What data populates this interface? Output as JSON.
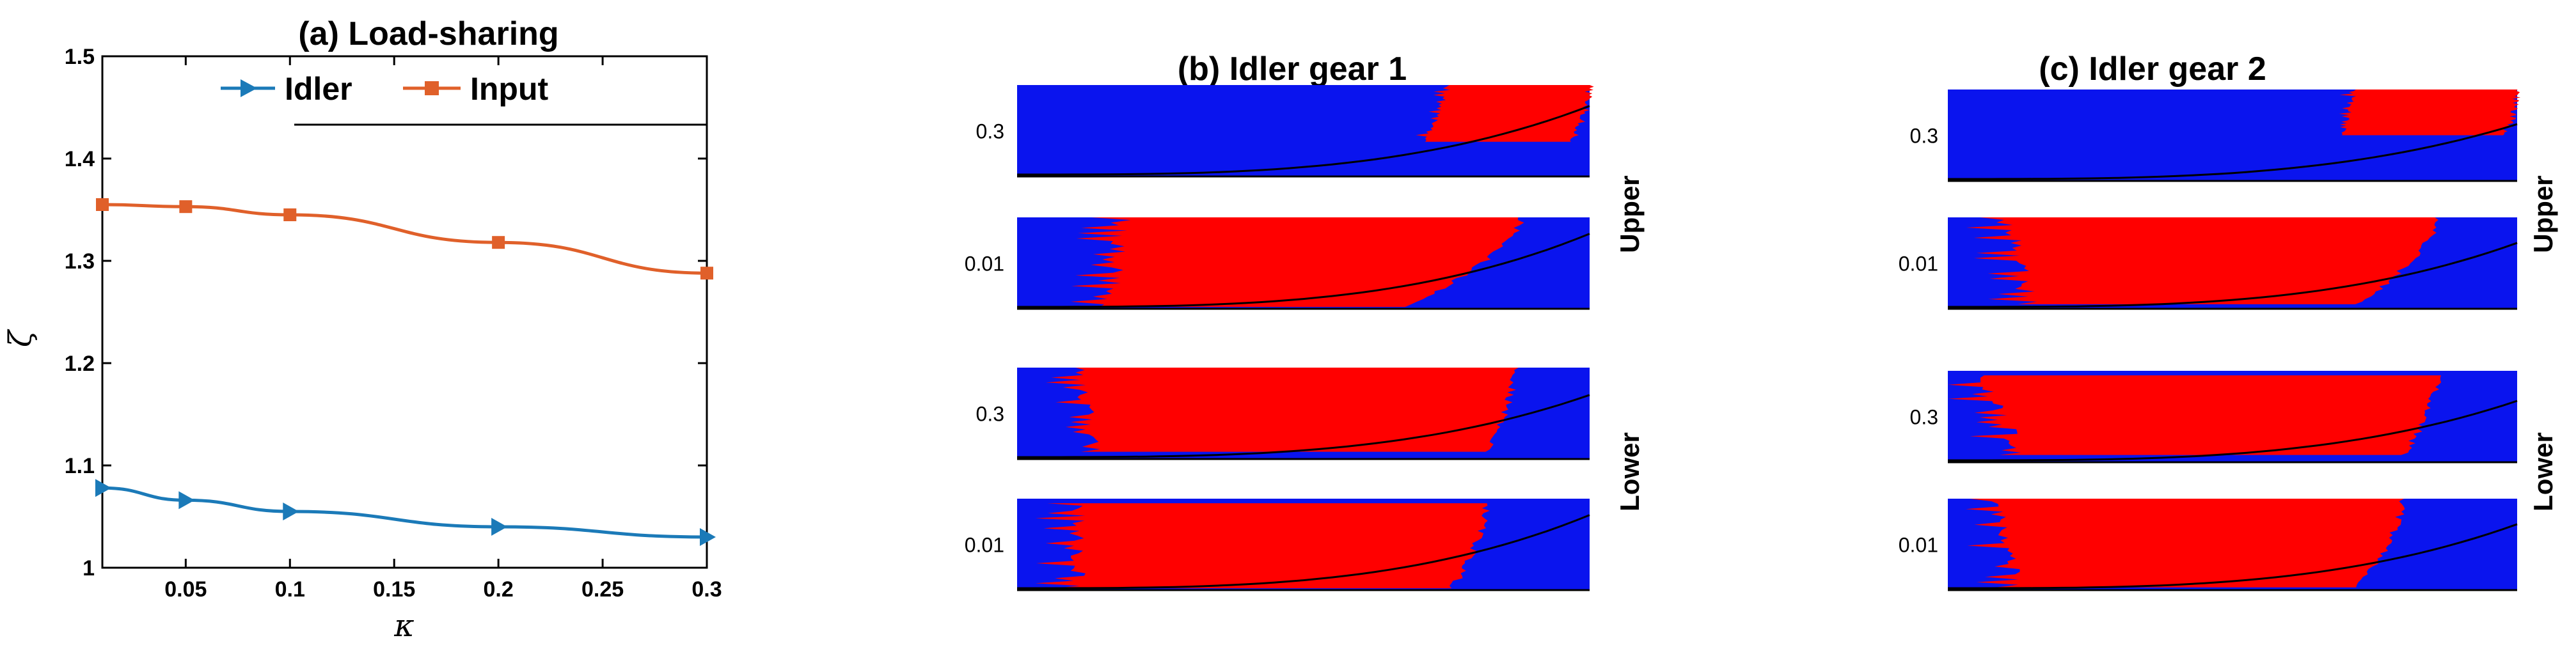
{
  "chart_data": [
    {
      "type": "line",
      "title": "(a) Load-sharing",
      "xlabel": "κ",
      "ylabel": "ζ",
      "xlim": [
        0.01,
        0.3
      ],
      "ylim": [
        1.0,
        1.5
      ],
      "x_ticks": [
        "0.05",
        "0.1",
        "0.15",
        "0.2",
        "0.25",
        "0.3"
      ],
      "y_ticks": [
        "1",
        "1.1",
        "1.2",
        "1.3",
        "1.4",
        "1.5"
      ],
      "legend_position": "top",
      "series": [
        {
          "name": "Idler",
          "color": "#1b7ab8",
          "marker": "triangle-right",
          "x": [
            0.01,
            0.05,
            0.1,
            0.2,
            0.3
          ],
          "y": [
            1.078,
            1.066,
            1.055,
            1.04,
            1.03
          ]
        },
        {
          "name": "Input",
          "color": "#e0602a",
          "marker": "square",
          "x": [
            0.01,
            0.05,
            0.1,
            0.2,
            0.3
          ],
          "y": [
            1.355,
            1.353,
            1.345,
            1.318,
            1.288
          ]
        }
      ]
    },
    {
      "type": "heatmap",
      "title": "(b) Idler gear 1",
      "rows": [
        {
          "tick": "0.3",
          "group": "Upper"
        },
        {
          "tick": "0.01",
          "group": "Upper"
        },
        {
          "tick": "0.3",
          "group": "Lower"
        },
        {
          "tick": "0.01",
          "group": "Lower"
        }
      ],
      "colors": {
        "background": "#0a14ee",
        "region": "#ff0000",
        "boundary": "#000000"
      }
    },
    {
      "type": "heatmap",
      "title": "(c) Idler gear 2",
      "rows": [
        {
          "tick": "0.3",
          "group": "Upper"
        },
        {
          "tick": "0.01",
          "group": "Upper"
        },
        {
          "tick": "0.3",
          "group": "Lower"
        },
        {
          "tick": "0.01",
          "group": "Lower"
        }
      ],
      "colors": {
        "background": "#0a14ee",
        "region": "#ff0000",
        "boundary": "#000000"
      }
    }
  ],
  "group_labels": [
    "Upper",
    "Lower"
  ]
}
